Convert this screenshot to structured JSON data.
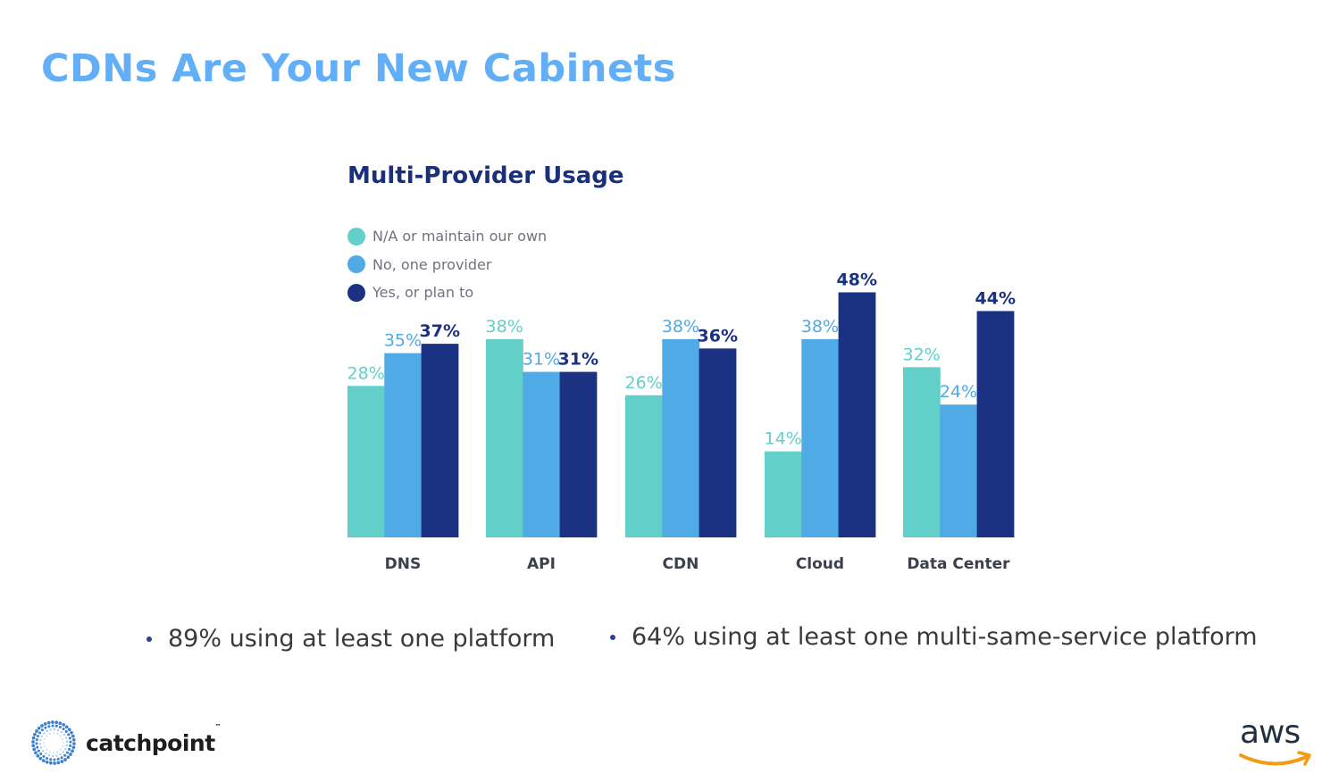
{
  "slide": {
    "title": "CDNs Are Your New Cabinets",
    "bullets": [
      "89% using at least one platform",
      "64% using at least one multi-same-service platform"
    ],
    "logos": {
      "left": "catchpoint",
      "left_tm": "™",
      "right": "aws"
    },
    "colors": {
      "title": "#62aef7",
      "bullet": "#2b3f9e",
      "aws_smile": "#f39c12"
    }
  },
  "chart_data": {
    "type": "bar",
    "title": "Multi-Provider Usage",
    "xlabel": "",
    "ylabel": "",
    "categories": [
      "DNS",
      "API",
      "CDN",
      "Cloud",
      "Data Center"
    ],
    "legend_position": "top-left",
    "grid": false,
    "ylim": [
      0,
      50
    ],
    "series": [
      {
        "name": "N/A or maintain our own",
        "color": "#62d0c8",
        "values": [
          28,
          38,
          26,
          14,
          32
        ],
        "labels": [
          "28%",
          "38%",
          "26%",
          "14%",
          "32%"
        ]
      },
      {
        "name": "No, one provider",
        "color": "#4faae6",
        "values": [
          35,
          31,
          38,
          38,
          24
        ],
        "labels": [
          "35%",
          "31%",
          "38%",
          "38%",
          "24%"
        ]
      },
      {
        "name": "Yes, or plan to",
        "color": "#1b3282",
        "values": [
          37,
          31,
          36,
          48,
          44
        ],
        "labels": [
          "37%",
          "31%",
          "36%",
          "48%",
          "44%"
        ]
      }
    ]
  }
}
